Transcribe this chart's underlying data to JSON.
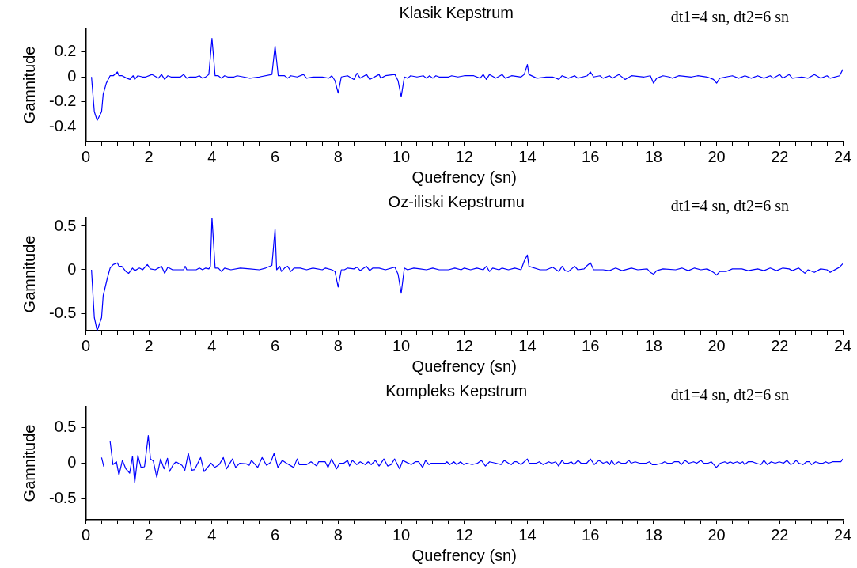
{
  "chart_data": [
    {
      "type": "line",
      "title": "Klasik Kepstrum",
      "xlabel": "Quefrency (sn)",
      "ylabel": "Gamnitude",
      "annotations": [
        "dt1=4 sn, dt2=6 sn"
      ],
      "grid": false,
      "legend": false,
      "marker": "none",
      "xlim": [
        0,
        24
      ],
      "ylim": [
        -0.52,
        0.39
      ],
      "yticks": [
        -0.4,
        -0.2,
        0,
        0.2
      ],
      "xticks": [
        0,
        {
          "value": 0.5,
          "label": null
        },
        2,
        {
          "value": 1,
          "label": null
        },
        {
          "value": 1.5,
          "label": null
        },
        {
          "value": 2.5,
          "label": null
        },
        {
          "value": 3,
          "label": null
        },
        {
          "value": 3.5,
          "label": null
        },
        4,
        {
          "value": 4.5,
          "label": null
        },
        {
          "value": 5,
          "label": null
        },
        {
          "value": 5.5,
          "label": null
        },
        6,
        {
          "value": 6.5,
          "label": null
        },
        {
          "value": 7,
          "label": null
        },
        {
          "value": 7.5,
          "label": null
        },
        8,
        {
          "value": 8.5,
          "label": null
        },
        {
          "value": 9,
          "label": null
        },
        {
          "value": 9.5,
          "label": null
        },
        10,
        {
          "value": 10.5,
          "label": null
        },
        {
          "value": 11,
          "label": null
        },
        {
          "value": 11.5,
          "label": null
        },
        12,
        {
          "value": 12.5,
          "label": null
        },
        {
          "value": 13,
          "label": null
        },
        {
          "value": 13.5,
          "label": null
        },
        14,
        {
          "value": 14.5,
          "label": null
        },
        {
          "value": 15,
          "label": null
        },
        {
          "value": 15.5,
          "label": null
        },
        16,
        {
          "value": 16.5,
          "label": null
        },
        {
          "value": 17,
          "label": null
        },
        {
          "value": 17.5,
          "label": null
        },
        18,
        {
          "value": 18.5,
          "label": null
        },
        {
          "value": 19,
          "label": null
        },
        {
          "value": 19.5,
          "label": null
        },
        20,
        {
          "value": 20.5,
          "label": null
        },
        {
          "value": 21,
          "label": null
        },
        {
          "value": 21.5,
          "label": null
        },
        22,
        {
          "value": 22.5,
          "label": null
        },
        {
          "value": 23,
          "label": null
        },
        {
          "value": 23.5,
          "label": null
        },
        24
      ],
      "x": [
        0.18,
        0.27,
        0.36,
        0.5,
        0.55,
        0.65,
        0.77,
        0.87,
        1.0,
        1.05,
        1.15,
        1.3,
        1.4,
        1.5,
        1.55,
        1.65,
        1.8,
        1.9,
        2.1,
        2.3,
        2.4,
        2.5,
        2.6,
        2.7,
        3.0,
        3.1,
        3.2,
        3.3,
        3.5,
        3.6,
        3.7,
        3.8,
        3.9,
        4.0,
        4.1,
        4.2,
        4.3,
        4.4,
        4.5,
        4.7,
        4.8,
        5.0,
        5.2,
        5.5,
        5.9,
        6.0,
        6.1,
        6.3,
        6.4,
        6.5,
        6.7,
        6.9,
        7.0,
        7.2,
        7.5,
        7.7,
        7.8,
        7.9,
        8.0,
        8.1,
        8.3,
        8.5,
        8.6,
        8.7,
        8.9,
        9.0,
        9.3,
        9.35,
        9.5,
        9.8,
        9.9,
        10.0,
        10.1,
        10.2,
        10.3,
        10.5,
        10.7,
        10.8,
        10.9,
        11.0,
        11.1,
        11.2,
        11.5,
        11.6,
        11.8,
        12.0,
        12.3,
        12.5,
        12.6,
        12.7,
        12.8,
        13.0,
        13.2,
        13.3,
        13.5,
        13.8,
        13.9,
        14.0,
        14.05,
        14.3,
        14.6,
        14.8,
        15.0,
        15.1,
        15.3,
        15.5,
        15.6,
        15.9,
        16.0,
        16.1,
        16.3,
        16.4,
        16.6,
        16.7,
        16.9,
        17.1,
        17.3,
        17.7,
        17.9,
        18.0,
        18.1,
        18.3,
        18.5,
        18.6,
        18.8,
        19.2,
        19.4,
        19.7,
        19.9,
        20.0,
        20.1,
        20.3,
        20.5,
        20.7,
        20.9,
        21.1,
        21.3,
        21.5,
        21.7,
        21.8,
        22.0,
        22.1,
        22.3,
        22.4,
        22.7,
        22.9,
        23.1,
        23.3,
        23.5,
        23.6,
        23.9,
        24.0
      ],
      "series": [
        {
          "color": "#0000ff",
          "values": [
            0,
            -0.28,
            -0.35,
            -0.28,
            -0.14,
            -0.05,
            0.01,
            0.01,
            0.04,
            0.01,
            0.01,
            -0.01,
            -0.02,
            0.01,
            -0.02,
            0.01,
            0,
            0,
            0.02,
            -0.01,
            0.02,
            -0.02,
            0.01,
            0,
            0,
            0.02,
            -0.01,
            0,
            0,
            0.01,
            -0.01,
            0,
            0.02,
            0.31,
            0.01,
            0.01,
            -0.01,
            0.01,
            0,
            0,
            0.01,
            0,
            -0.01,
            0,
            0.02,
            0.25,
            0.01,
            0.01,
            -0.01,
            0.01,
            0,
            0.02,
            -0.01,
            0,
            0,
            -0.01,
            0.01,
            -0.03,
            -0.13,
            0,
            0.01,
            -0.02,
            0.03,
            -0.01,
            0.02,
            -0.02,
            0.02,
            -0.01,
            0.01,
            0.02,
            -0.03,
            -0.16,
            0,
            -0.01,
            0.01,
            0,
            0.01,
            -0.01,
            0.01,
            -0.01,
            0.01,
            0,
            0,
            0.01,
            0,
            0.01,
            0.01,
            -0.01,
            0.02,
            -0.02,
            0.02,
            -0.01,
            0.02,
            -0.01,
            0.01,
            0,
            0.02,
            0.1,
            0.02,
            -0.01,
            0,
            0,
            -0.02,
            0.01,
            -0.01,
            0.01,
            -0.01,
            0.01,
            0.04,
            0,
            0.01,
            -0.01,
            0.01,
            -0.01,
            0.02,
            -0.02,
            0.01,
            0,
            0.01,
            -0.05,
            -0.01,
            0.01,
            0,
            -0.01,
            0.01,
            0,
            0.01,
            0,
            -0.02,
            -0.05,
            -0.01,
            0,
            0.01,
            -0.01,
            0.01,
            -0.01,
            0.01,
            -0.01,
            0.01,
            -0.01,
            0.02,
            -0.01,
            0.02,
            -0.01,
            0,
            -0.01,
            0.02,
            -0.01,
            0.01,
            -0.01,
            0.01,
            0.06
          ]
        }
      ]
    },
    {
      "type": "line",
      "title": "Oz-iliski Kepstrumu",
      "xlabel": "Quefrency (sn)",
      "ylabel": "Gamnitude",
      "annotations": [
        "dt1=4 sn, dt2=6 sn"
      ],
      "grid": false,
      "legend": false,
      "marker": "none",
      "xlim": [
        0,
        24
      ],
      "ylim": [
        -0.7,
        0.6
      ],
      "yticks": [
        -0.5,
        0,
        0.5
      ],
      "xticks": [
        0,
        {
          "value": 0.5,
          "label": null
        },
        2,
        {
          "value": 1,
          "label": null
        },
        {
          "value": 1.5,
          "label": null
        },
        {
          "value": 2.5,
          "label": null
        },
        {
          "value": 3,
          "label": null
        },
        {
          "value": 3.5,
          "label": null
        },
        4,
        {
          "value": 4.5,
          "label": null
        },
        {
          "value": 5,
          "label": null
        },
        {
          "value": 5.5,
          "label": null
        },
        6,
        {
          "value": 6.5,
          "label": null
        },
        {
          "value": 7,
          "label": null
        },
        {
          "value": 7.5,
          "label": null
        },
        8,
        {
          "value": 8.5,
          "label": null
        },
        {
          "value": 9,
          "label": null
        },
        {
          "value": 9.5,
          "label": null
        },
        10,
        {
          "value": 10.5,
          "label": null
        },
        {
          "value": 11,
          "label": null
        },
        {
          "value": 11.5,
          "label": null
        },
        12,
        {
          "value": 12.5,
          "label": null
        },
        {
          "value": 13,
          "label": null
        },
        {
          "value": 13.5,
          "label": null
        },
        14,
        {
          "value": 14.5,
          "label": null
        },
        {
          "value": 15,
          "label": null
        },
        {
          "value": 15.5,
          "label": null
        },
        16,
        {
          "value": 16.5,
          "label": null
        },
        {
          "value": 17,
          "label": null
        },
        {
          "value": 17.5,
          "label": null
        },
        18,
        {
          "value": 18.5,
          "label": null
        },
        {
          "value": 19,
          "label": null
        },
        {
          "value": 19.5,
          "label": null
        },
        20,
        {
          "value": 20.5,
          "label": null
        },
        {
          "value": 21,
          "label": null
        },
        {
          "value": 21.5,
          "label": null
        },
        22,
        {
          "value": 22.5,
          "label": null
        },
        {
          "value": 23,
          "label": null
        },
        {
          "value": 23.5,
          "label": null
        },
        24
      ],
      "x": [
        0.18,
        0.27,
        0.36,
        0.5,
        0.55,
        0.68,
        0.77,
        0.87,
        1.0,
        1.05,
        1.14,
        1.27,
        1.36,
        1.48,
        1.55,
        1.7,
        1.8,
        1.95,
        2.05,
        2.2,
        2.4,
        2.5,
        2.6,
        2.75,
        3.1,
        3.15,
        3.2,
        3.5,
        3.6,
        3.7,
        3.8,
        3.9,
        3.95,
        4.0,
        4.1,
        4.2,
        4.3,
        4.4,
        4.6,
        4.9,
        5.2,
        5.5,
        5.7,
        5.9,
        6.0,
        6.05,
        6.15,
        6.2,
        6.3,
        6.4,
        6.5,
        6.6,
        6.8,
        7.0,
        7.2,
        7.5,
        7.6,
        7.8,
        7.9,
        8.0,
        8.1,
        8.2,
        8.3,
        8.5,
        8.6,
        8.7,
        8.9,
        9.0,
        9.1,
        9.3,
        9.5,
        9.8,
        9.9,
        10.0,
        10.1,
        10.2,
        10.4,
        10.6,
        10.8,
        11.0,
        11.2,
        11.5,
        11.7,
        11.9,
        12.0,
        12.2,
        12.4,
        12.6,
        12.7,
        12.8,
        12.9,
        13.1,
        13.2,
        13.4,
        13.6,
        13.8,
        13.9,
        14.0,
        14.05,
        14.4,
        14.6,
        14.8,
        15.0,
        15.1,
        15.2,
        15.3,
        15.5,
        15.6,
        15.8,
        15.9,
        16.0,
        16.1,
        16.4,
        16.6,
        16.8,
        17.0,
        17.3,
        17.5,
        17.8,
        17.9,
        18.0,
        18.1,
        18.3,
        18.7,
        18.9,
        19.1,
        19.3,
        19.5,
        19.7,
        19.9,
        20.0,
        20.1,
        20.3,
        20.5,
        20.8,
        21.0,
        21.3,
        21.5,
        21.7,
        21.9,
        22.1,
        22.3,
        22.4,
        22.6,
        22.8,
        22.9,
        23.1,
        23.3,
        23.5,
        23.6,
        23.8,
        23.9,
        24.0
      ],
      "series": [
        {
          "color": "#0000ff",
          "values": [
            0,
            -0.55,
            -0.7,
            -0.55,
            -0.3,
            -0.1,
            0.02,
            0.06,
            0.08,
            0.04,
            0.04,
            -0.02,
            -0.04,
            0.02,
            -0.01,
            0.02,
            0,
            0.06,
            0.01,
            0,
            0.04,
            -0.04,
            0.03,
            0,
            0,
            0.04,
            0,
            0,
            0.02,
            0,
            0.02,
            0.01,
            0.04,
            0.6,
            0.02,
            0.02,
            -0.02,
            0.02,
            0,
            0.02,
            0.01,
            0,
            0.02,
            0.05,
            0.47,
            0,
            0.04,
            -0.02,
            0.02,
            0.04,
            -0.02,
            0.02,
            0.02,
            0,
            0.02,
            0,
            0.02,
            0,
            -0.02,
            -0.2,
            0,
            0,
            0.02,
            0.01,
            0.03,
            -0.01,
            0.04,
            -0.01,
            0.02,
            0.02,
            0,
            0.03,
            -0.05,
            -0.27,
            0.02,
            0,
            0.02,
            0.01,
            0,
            0.02,
            0,
            0,
            0.02,
            0,
            0.02,
            0,
            0.02,
            0,
            0.04,
            -0.02,
            0.02,
            0,
            0.02,
            0,
            0.02,
            0,
            0.1,
            0.17,
            0.04,
            0,
            0,
            0.03,
            -0.02,
            0.04,
            -0.01,
            -0.02,
            0.04,
            0,
            0.01,
            0.05,
            0.08,
            0,
            0,
            -0.01,
            0.02,
            -0.01,
            0.02,
            0,
            0.01,
            -0.03,
            -0.05,
            -0.01,
            0.01,
            0,
            0.02,
            -0.01,
            0.02,
            0,
            0.01,
            -0.03,
            -0.06,
            -0.02,
            -0.02,
            0.01,
            0.01,
            -0.01,
            0.01,
            -0.01,
            0.02,
            -0.01,
            0.02,
            0.01,
            -0.01,
            0.02,
            -0.04,
            0,
            -0.03,
            0.01,
            0,
            -0.03,
            0.01,
            0.03,
            0.07
          ]
        }
      ]
    },
    {
      "type": "line",
      "title": "Kompleks Kepstrum",
      "xlabel": "Quefrency (sn)",
      "ylabel": "Gamnitude",
      "annotations": [
        "dt1=4 sn, dt2=6 sn"
      ],
      "grid": false,
      "legend": false,
      "marker": "none",
      "xlim": [
        0,
        24
      ],
      "ylim": [
        -0.8,
        0.8
      ],
      "yticks": [
        -0.5,
        0,
        0.5
      ],
      "xticks": [
        0,
        {
          "value": 0.5,
          "label": null
        },
        2,
        {
          "value": 1,
          "label": null
        },
        {
          "value": 1.5,
          "label": null
        },
        {
          "value": 2.5,
          "label": null
        },
        {
          "value": 3,
          "label": null
        },
        {
          "value": 3.5,
          "label": null
        },
        4,
        {
          "value": 4.5,
          "label": null
        },
        {
          "value": 5,
          "label": null
        },
        {
          "value": 5.5,
          "label": null
        },
        6,
        {
          "value": 6.5,
          "label": null
        },
        {
          "value": 7,
          "label": null
        },
        {
          "value": 7.5,
          "label": null
        },
        8,
        {
          "value": 8.5,
          "label": null
        },
        {
          "value": 9,
          "label": null
        },
        {
          "value": 9.5,
          "label": null
        },
        10,
        {
          "value": 10.5,
          "label": null
        },
        {
          "value": 11,
          "label": null
        },
        {
          "value": 11.5,
          "label": null
        },
        12,
        {
          "value": 12.5,
          "label": null
        },
        {
          "value": 13,
          "label": null
        },
        {
          "value": 13.5,
          "label": null
        },
        14,
        {
          "value": 14.5,
          "label": null
        },
        {
          "value": 15,
          "label": null
        },
        {
          "value": 15.5,
          "label": null
        },
        16,
        {
          "value": 16.5,
          "label": null
        },
        {
          "value": 17,
          "label": null
        },
        {
          "value": 17.5,
          "label": null
        },
        18,
        {
          "value": 18.5,
          "label": null
        },
        {
          "value": 19,
          "label": null
        },
        {
          "value": 19.5,
          "label": null
        },
        20,
        {
          "value": 20.5,
          "label": null
        },
        {
          "value": 21,
          "label": null
        },
        {
          "value": 21.5,
          "label": null
        },
        22,
        {
          "value": 22.5,
          "label": null
        },
        {
          "value": 23,
          "label": null
        },
        {
          "value": 23.5,
          "label": null
        },
        24
      ],
      "x": [
        0.5,
        0.57,
        0.66,
        0.77,
        0.86,
        0.97,
        1.05,
        1.16,
        1.27,
        1.39,
        1.48,
        1.55,
        1.65,
        1.75,
        1.86,
        1.98,
        2.05,
        2.14,
        2.25,
        2.37,
        2.48,
        2.59,
        2.65,
        2.77,
        2.86,
        3.05,
        3.14,
        3.25,
        3.36,
        3.45,
        3.64,
        3.75,
        3.97,
        4.09,
        4.23,
        4.36,
        4.46,
        4.65,
        4.75,
        4.88,
        5.09,
        5.18,
        5.25,
        5.45,
        5.59,
        5.73,
        5.86,
        5.97,
        6.09,
        6.23,
        6.36,
        6.59,
        6.7,
        6.77,
        7.0,
        7.14,
        7.32,
        7.38,
        7.59,
        7.68,
        7.79,
        7.95,
        8.05,
        8.18,
        8.3,
        8.36,
        8.45,
        8.59,
        8.7,
        8.86,
        8.95,
        9.05,
        9.18,
        9.3,
        9.45,
        9.57,
        9.68,
        9.79,
        9.95,
        10.05,
        10.18,
        10.32,
        10.45,
        10.55,
        10.68,
        10.77,
        10.88,
        10.95,
        11.4,
        11.45,
        11.54,
        11.67,
        11.76,
        11.88,
        11.98,
        12.07,
        12.25,
        12.42,
        12.54,
        12.67,
        12.8,
        13.0,
        13.16,
        13.27,
        13.4,
        13.49,
        13.58,
        13.66,
        13.8,
        14.0,
        14.06,
        14.28,
        14.38,
        14.5,
        14.68,
        14.77,
        14.9,
        14.99,
        15.1,
        15.17,
        15.3,
        15.39,
        15.48,
        15.61,
        15.7,
        15.88,
        16.0,
        16.12,
        16.27,
        16.4,
        16.52,
        16.61,
        16.67,
        16.76,
        16.89,
        16.98,
        17.12,
        17.22,
        17.29,
        17.42,
        17.56,
        17.76,
        17.87,
        17.96,
        18.09,
        18.27,
        18.35,
        18.44,
        18.58,
        18.66,
        18.8,
        18.88,
        19.0,
        19.12,
        19.27,
        19.37,
        19.5,
        19.59,
        19.73,
        19.83,
        19.99,
        20.12,
        20.26,
        20.35,
        20.43,
        20.52,
        20.65,
        20.74,
        20.83,
        20.89,
        21.0,
        21.14,
        21.25,
        21.41,
        21.5,
        21.61,
        21.73,
        21.86,
        21.99,
        22.12,
        22.23,
        22.35,
        22.44,
        22.52,
        22.61,
        22.74,
        22.85,
        22.94,
        23.01,
        23.14,
        23.26,
        23.37,
        23.46,
        23.55,
        23.68,
        23.94,
        24.0
      ],
      "series": [
        {
          "color": "#0000ff",
          "values": [
            0.08,
            -0.05,
            null,
            0.31,
            -0.02,
            0.02,
            -0.17,
            0.04,
            -0.08,
            -0.14,
            0.1,
            -0.28,
            0.11,
            -0.06,
            -0.05,
            0.39,
            0.06,
            0.03,
            -0.2,
            0.06,
            -0.08,
            0.07,
            -0.12,
            -0.02,
            0.02,
            -0.03,
            -0.1,
            0.14,
            -0.1,
            -0.09,
            0.08,
            -0.12,
            0,
            -0.06,
            -0.02,
            0.08,
            -0.08,
            0.06,
            -0.06,
            0,
            -0.01,
            -0.03,
            0.04,
            -0.06,
            0.08,
            -0.03,
            0.01,
            0.14,
            -0.06,
            0.04,
            0,
            -0.06,
            0.06,
            -0.02,
            -0.02,
            0.02,
            -0.04,
            0.02,
            0.02,
            -0.06,
            0.06,
            -0.08,
            0,
            0,
            0.04,
            -0.04,
            0.04,
            -0.02,
            0.02,
            -0.02,
            0.02,
            -0.02,
            0.04,
            -0.04,
            0.06,
            -0.04,
            -0.02,
            0.06,
            -0.08,
            0.04,
            0.01,
            -0.02,
            0.02,
            0.02,
            -0.06,
            0.04,
            -0.02,
            0,
            0,
            0.02,
            -0.02,
            0.02,
            -0.02,
            0.02,
            -0.02,
            0,
            -0.02,
            0,
            0.04,
            -0.04,
            0.02,
            0,
            -0.02,
            0.04,
            0,
            -0.02,
            0.02,
            0.02,
            -0.02,
            0.06,
            0,
            0,
            0.02,
            -0.02,
            0.02,
            0,
            0.02,
            -0.04,
            0.04,
            0,
            0,
            0.02,
            -0.02,
            0.04,
            0,
            0,
            0.06,
            -0.02,
            0.04,
            0,
            0.02,
            -0.02,
            0.04,
            -0.02,
            0.02,
            0,
            0,
            0.04,
            0,
            0.02,
            0,
            0,
            0.02,
            -0.02,
            -0.02,
            0,
            0.02,
            0,
            0,
            0.02,
            0.02,
            -0.02,
            0.04,
            0,
            0.02,
            0,
            0.04,
            0,
            0,
            0.02,
            -0.06,
            0,
            0.02,
            0,
            0.02,
            0,
            0.02,
            0,
            0.02,
            -0.02,
            0.02,
            0.02,
            0,
            -0.02,
            0.04,
            -0.02,
            0.02,
            0,
            0.02,
            0,
            0.04,
            -0.02,
            0,
            0.04,
            0,
            -0.02,
            0.02,
            0.02,
            -0.02,
            0.02,
            0,
            0,
            0.02,
            0,
            0.02,
            0.02,
            0.06
          ]
        }
      ]
    }
  ]
}
